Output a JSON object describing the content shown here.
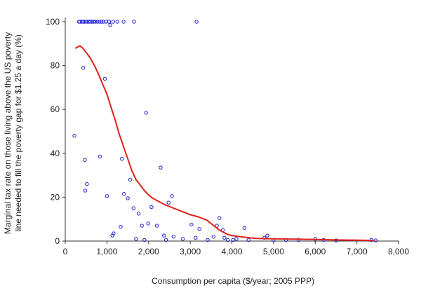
{
  "chart_data": {
    "type": "scatter",
    "title": "",
    "xlabel": "Consumption per capita ($/year; 2005 PPP)",
    "ylabel_lines": [
      "Marginal tax rate on those living above the US poverty",
      "line needed to fill the poverty gap for $1.25 a day (%)"
    ],
    "xlim": [
      0,
      8000
    ],
    "ylim": [
      0,
      100
    ],
    "x_ticks": [
      0,
      1000,
      2000,
      3000,
      4000,
      5000,
      6000,
      7000,
      8000
    ],
    "x_tick_labels": [
      "0",
      "1,000",
      "2,000",
      "3,000",
      "4,000",
      "5,000",
      "6,000",
      "7,000",
      "8,000"
    ],
    "y_ticks": [
      0,
      20,
      40,
      60,
      80,
      100
    ],
    "y_tick_labels": [
      "0",
      "20",
      "40",
      "60",
      "80",
      "100"
    ],
    "grid": false,
    "legend": "none",
    "series": [
      {
        "kind": "points",
        "color": "#1f1fd0",
        "points": [
          [
            330,
            100
          ],
          [
            360,
            100
          ],
          [
            400,
            100
          ],
          [
            430,
            100
          ],
          [
            460,
            100
          ],
          [
            500,
            100
          ],
          [
            530,
            100
          ],
          [
            560,
            100
          ],
          [
            600,
            100
          ],
          [
            640,
            100
          ],
          [
            680,
            100
          ],
          [
            720,
            100
          ],
          [
            770,
            100
          ],
          [
            820,
            100
          ],
          [
            870,
            100
          ],
          [
            920,
            100
          ],
          [
            980,
            100
          ],
          [
            1050,
            100
          ],
          [
            1150,
            100
          ],
          [
            1250,
            100
          ],
          [
            1400,
            100
          ],
          [
            1650,
            100
          ],
          [
            3150,
            100
          ],
          [
            1080,
            98.5
          ],
          [
            220,
            48
          ],
          [
            430,
            79
          ],
          [
            470,
            37
          ],
          [
            480,
            23
          ],
          [
            520,
            26
          ],
          [
            830,
            38.5
          ],
          [
            950,
            74
          ],
          [
            1000,
            20.5
          ],
          [
            1050,
            100
          ],
          [
            1130,
            2.5
          ],
          [
            1160,
            3.5
          ],
          [
            1330,
            6.5
          ],
          [
            1360,
            37.5
          ],
          [
            1410,
            21.5
          ],
          [
            1500,
            19.5
          ],
          [
            1560,
            28
          ],
          [
            1640,
            15
          ],
          [
            1700,
            1
          ],
          [
            1760,
            12.5
          ],
          [
            1840,
            7
          ],
          [
            1900,
            0.5
          ],
          [
            1940,
            58.5
          ],
          [
            1990,
            8
          ],
          [
            2070,
            15.5
          ],
          [
            2200,
            7
          ],
          [
            2290,
            33.5
          ],
          [
            2370,
            2.5
          ],
          [
            2420,
            0.5
          ],
          [
            2480,
            17.5
          ],
          [
            2560,
            20.5
          ],
          [
            2600,
            2
          ],
          [
            2820,
            1
          ],
          [
            3030,
            7.5
          ],
          [
            3130,
            1.5
          ],
          [
            3220,
            5.5
          ],
          [
            3420,
            0.5
          ],
          [
            3560,
            2
          ],
          [
            3640,
            7
          ],
          [
            3700,
            10.5
          ],
          [
            3780,
            5
          ],
          [
            3820,
            1.5
          ],
          [
            3900,
            0.5
          ],
          [
            4030,
            0.5
          ],
          [
            4110,
            1
          ],
          [
            4300,
            6
          ],
          [
            4400,
            0.5
          ],
          [
            4780,
            1.5
          ],
          [
            4850,
            2.5
          ],
          [
            5000,
            0.5
          ],
          [
            5300,
            0.5
          ],
          [
            5600,
            0.5
          ],
          [
            6000,
            1
          ],
          [
            6200,
            0.5
          ],
          [
            6500,
            0.3
          ],
          [
            7350,
            0.5
          ],
          [
            7450,
            0.3
          ]
        ]
      },
      {
        "kind": "line",
        "color": "#e0201a",
        "points": [
          [
            250,
            88
          ],
          [
            350,
            89
          ],
          [
            420,
            88
          ],
          [
            500,
            86
          ],
          [
            600,
            83.5
          ],
          [
            700,
            80
          ],
          [
            800,
            76
          ],
          [
            900,
            71.5
          ],
          [
            1000,
            67
          ],
          [
            1100,
            61
          ],
          [
            1200,
            55
          ],
          [
            1300,
            48.5
          ],
          [
            1400,
            43
          ],
          [
            1500,
            37.5
          ],
          [
            1600,
            32
          ],
          [
            1700,
            28
          ],
          [
            1800,
            25.5
          ],
          [
            1900,
            23
          ],
          [
            2000,
            21
          ],
          [
            2100,
            19.5
          ],
          [
            2200,
            18.5
          ],
          [
            2400,
            16.5
          ],
          [
            2600,
            15
          ],
          [
            2800,
            13.5
          ],
          [
            3000,
            12
          ],
          [
            3200,
            11
          ],
          [
            3400,
            9.5
          ],
          [
            3500,
            8
          ],
          [
            3600,
            6.5
          ],
          [
            3700,
            5
          ],
          [
            3800,
            4
          ],
          [
            3900,
            3
          ],
          [
            4000,
            2.5
          ],
          [
            4200,
            2
          ],
          [
            4400,
            1.5
          ],
          [
            4600,
            1.2
          ],
          [
            4800,
            1.1
          ],
          [
            5000,
            1
          ],
          [
            5500,
            0.9
          ],
          [
            6000,
            0.7
          ],
          [
            6500,
            0.5
          ],
          [
            7000,
            0.4
          ],
          [
            7400,
            0.3
          ]
        ]
      }
    ]
  }
}
